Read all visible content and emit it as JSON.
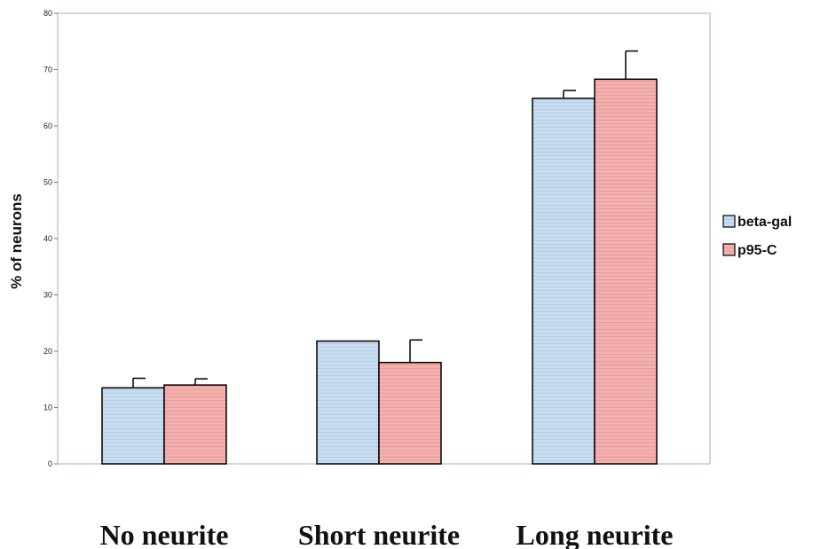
{
  "chart_data": {
    "type": "bar",
    "title": "",
    "xlabel": "",
    "ylabel": "% of neurons",
    "ylim": [
      0,
      80
    ],
    "yticks": [
      0,
      10,
      20,
      30,
      40,
      50,
      60,
      70,
      80
    ],
    "categories": [
      "No neurite",
      "Short neurite",
      "Long neurite"
    ],
    "series": [
      {
        "name": "beta-gal",
        "color": "#c6dcf0",
        "values": [
          13.5,
          21.8,
          64.9
        ],
        "errors": [
          1.7,
          0.0,
          1.4
        ]
      },
      {
        "name": "p95-C",
        "color": "#f4b0ae",
        "values": [
          14.0,
          18.0,
          68.3
        ],
        "errors": [
          1.1,
          4.0,
          5.0
        ]
      }
    ],
    "legend": "right",
    "grid": false,
    "frame_color": "#b9d3c2"
  }
}
